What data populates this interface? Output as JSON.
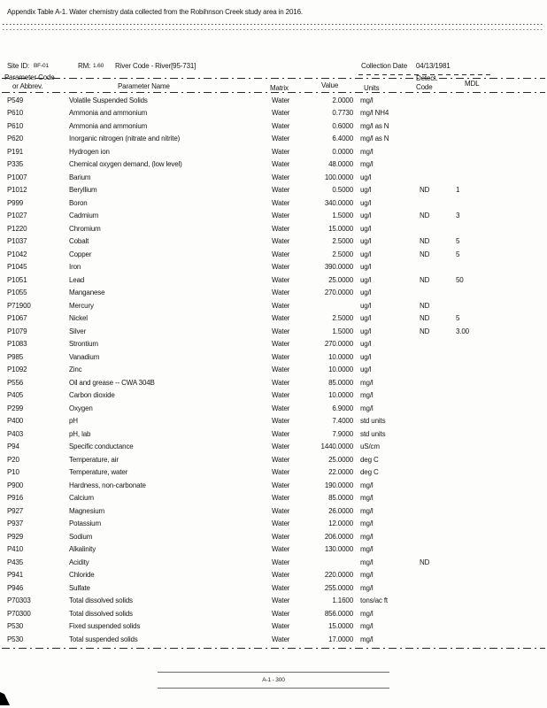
{
  "title": "Appendix Table A-1. Water chemistry data collected from the Robihnson Creek study area in 2016.",
  "site_info": {
    "site_id_label": "Site ID:",
    "site_id_value": "BF-01",
    "rm_label": "RM:",
    "rm_value": "1.60",
    "river_code": "River Code - River[95-731]",
    "collection_date_label": "Collection Date",
    "collection_date_value": "04/13/1981"
  },
  "table": {
    "headers": {
      "param_code_line1": "Parameter Code",
      "param_code_line2": "or Abbrev.",
      "param_name": "Parameter Name",
      "matrix": "Matrix",
      "value": "Value",
      "units": "Units",
      "detect_line1": "Detect.",
      "detect_line2": "Code",
      "mdl": "MDL"
    },
    "rows": [
      {
        "code": "P549",
        "name": "Volatile Suspended Solids",
        "matrix": "Water",
        "value": "2.0000",
        "units": "mg/l",
        "detect": "",
        "mdl": ""
      },
      {
        "code": "P610",
        "name": "Ammonia and ammonium",
        "matrix": "Water",
        "value": "0.7730",
        "units": "mg/l NH4",
        "detect": "",
        "mdl": ""
      },
      {
        "code": "P610",
        "name": "Ammonia and ammonium",
        "matrix": "Water",
        "value": "0.6000",
        "units": "mg/l as N",
        "detect": "",
        "mdl": ""
      },
      {
        "code": "P620",
        "name": "Inorganic nitrogen (nitrate and nitrite)",
        "matrix": "Water",
        "value": "6.4000",
        "units": "mg/l as N",
        "detect": "",
        "mdl": ""
      },
      {
        "code": "P191",
        "name": "Hydrogen ion",
        "matrix": "Water",
        "value": "0.0000",
        "units": "mg/l",
        "detect": "",
        "mdl": ""
      },
      {
        "code": "P335",
        "name": "Chemical oxygen demand, (low level)",
        "matrix": "Water",
        "value": "48.0000",
        "units": "mg/l",
        "detect": "",
        "mdl": ""
      },
      {
        "code": "P1007",
        "name": "Barium",
        "matrix": "Water",
        "value": "100.0000",
        "units": "ug/l",
        "detect": "",
        "mdl": ""
      },
      {
        "code": "P1012",
        "name": "Beryllium",
        "matrix": "Water",
        "value": "0.5000",
        "units": "ug/l",
        "detect": "ND",
        "mdl": "1"
      },
      {
        "code": "P999",
        "name": "Boron",
        "matrix": "Water",
        "value": "340.0000",
        "units": "ug/l",
        "detect": "",
        "mdl": ""
      },
      {
        "code": "P1027",
        "name": "Cadmium",
        "matrix": "Water",
        "value": "1.5000",
        "units": "ug/l",
        "detect": "ND",
        "mdl": "3"
      },
      {
        "code": "P1220",
        "name": "Chromium",
        "matrix": "Water",
        "value": "15.0000",
        "units": "ug/l",
        "detect": "",
        "mdl": ""
      },
      {
        "code": "P1037",
        "name": "Cobalt",
        "matrix": "Water",
        "value": "2.5000",
        "units": "ug/l",
        "detect": "ND",
        "mdl": "5"
      },
      {
        "code": "P1042",
        "name": "Copper",
        "matrix": "Water",
        "value": "2.5000",
        "units": "ug/l",
        "detect": "ND",
        "mdl": "5"
      },
      {
        "code": "P1045",
        "name": "Iron",
        "matrix": "Water",
        "value": "390.0000",
        "units": "ug/l",
        "detect": "",
        "mdl": ""
      },
      {
        "code": "P1051",
        "name": "Lead",
        "matrix": "Water",
        "value": "25.0000",
        "units": "ug/l",
        "detect": "ND",
        "mdl": "50"
      },
      {
        "code": "P1055",
        "name": "Manganese",
        "matrix": "Water",
        "value": "270.0000",
        "units": "ug/l",
        "detect": "",
        "mdl": ""
      },
      {
        "code": "P71900",
        "name": "Mercury",
        "matrix": "Water",
        "value": "",
        "units": "ug/l",
        "detect": "ND",
        "mdl": ""
      },
      {
        "code": "P1067",
        "name": "Nickel",
        "matrix": "Water",
        "value": "2.5000",
        "units": "ug/l",
        "detect": "ND",
        "mdl": "5"
      },
      {
        "code": "P1079",
        "name": "Silver",
        "matrix": "Water",
        "value": "1.5000",
        "units": "ug/l",
        "detect": "ND",
        "mdl": "3.00"
      },
      {
        "code": "P1083",
        "name": "Strontium",
        "matrix": "Water",
        "value": "270.0000",
        "units": "ug/l",
        "detect": "",
        "mdl": ""
      },
      {
        "code": "P985",
        "name": "Vanadium",
        "matrix": "Water",
        "value": "10.0000",
        "units": "ug/l",
        "detect": "",
        "mdl": ""
      },
      {
        "code": "P1092",
        "name": "Zinc",
        "matrix": "Water",
        "value": "10.0000",
        "units": "ug/l",
        "detect": "",
        "mdl": ""
      },
      {
        "code": "P556",
        "name": "Oil and grease -- CWA 304B",
        "matrix": "Water",
        "value": "85.0000",
        "units": "mg/l",
        "detect": "",
        "mdl": ""
      },
      {
        "code": "P405",
        "name": "Carbon dioxide",
        "matrix": "Water",
        "value": "10.0000",
        "units": "mg/l",
        "detect": "",
        "mdl": ""
      },
      {
        "code": "P299",
        "name": "Oxygen",
        "matrix": "Water",
        "value": "6.9000",
        "units": "mg/l",
        "detect": "",
        "mdl": ""
      },
      {
        "code": "P400",
        "name": "pH",
        "matrix": "Water",
        "value": "7.4000",
        "units": "std units",
        "detect": "",
        "mdl": ""
      },
      {
        "code": "P403",
        "name": "pH, lab",
        "matrix": "Water",
        "value": "7.9000",
        "units": "std units",
        "detect": "",
        "mdl": ""
      },
      {
        "code": "P94",
        "name": "Specific conductance",
        "matrix": "Water",
        "value": "1440.0000",
        "units": "uS/cm",
        "detect": "",
        "mdl": ""
      },
      {
        "code": "P20",
        "name": "Temperature, air",
        "matrix": "Water",
        "value": "25.0000",
        "units": "deg C",
        "detect": "",
        "mdl": ""
      },
      {
        "code": "P10",
        "name": "Temperature, water",
        "matrix": "Water",
        "value": "22.0000",
        "units": "deg C",
        "detect": "",
        "mdl": ""
      },
      {
        "code": "P900",
        "name": "Hardness, non-carbonate",
        "matrix": "Water",
        "value": "190.0000",
        "units": "mg/l",
        "detect": "",
        "mdl": ""
      },
      {
        "code": "P916",
        "name": "Calcium",
        "matrix": "Water",
        "value": "85.0000",
        "units": "mg/l",
        "detect": "",
        "mdl": ""
      },
      {
        "code": "P927",
        "name": "Magnesium",
        "matrix": "Water",
        "value": "26.0000",
        "units": "mg/l",
        "detect": "",
        "mdl": ""
      },
      {
        "code": "P937",
        "name": "Potassium",
        "matrix": "Water",
        "value": "12.0000",
        "units": "mg/l",
        "detect": "",
        "mdl": ""
      },
      {
        "code": "P929",
        "name": "Sodium",
        "matrix": "Water",
        "value": "206.0000",
        "units": "mg/l",
        "detect": "",
        "mdl": ""
      },
      {
        "code": "P410",
        "name": "Alkalinity",
        "matrix": "Water",
        "value": "130.0000",
        "units": "mg/l",
        "detect": "",
        "mdl": ""
      },
      {
        "code": "P435",
        "name": "Acidity",
        "matrix": "Water",
        "value": "",
        "units": "mg/l",
        "detect": "ND",
        "mdl": ""
      },
      {
        "code": "P941",
        "name": "Chloride",
        "matrix": "Water",
        "value": "220.0000",
        "units": "mg/l",
        "detect": "",
        "mdl": ""
      },
      {
        "code": "P946",
        "name": "Sulfate",
        "matrix": "Water",
        "value": "255.0000",
        "units": "mg/l",
        "detect": "",
        "mdl": ""
      },
      {
        "code": "P70303",
        "name": "Total dissolved solids",
        "matrix": "Water",
        "value": "1.1600",
        "units": "tons/ac ft",
        "detect": "",
        "mdl": ""
      },
      {
        "code": "P70300",
        "name": "Total dissolved solids",
        "matrix": "Water",
        "value": "856.0000",
        "units": "mg/l",
        "detect": "",
        "mdl": ""
      },
      {
        "code": "P530",
        "name": "Fixed suspended solids",
        "matrix": "Water",
        "value": "15.0000",
        "units": "mg/l",
        "detect": "",
        "mdl": ""
      },
      {
        "code": "P530",
        "name": "Total suspended solids",
        "matrix": "Water",
        "value": "17.0000",
        "units": "mg/l",
        "detect": "",
        "mdl": ""
      }
    ]
  },
  "footer": {
    "page_label": "A-1 - 300"
  }
}
